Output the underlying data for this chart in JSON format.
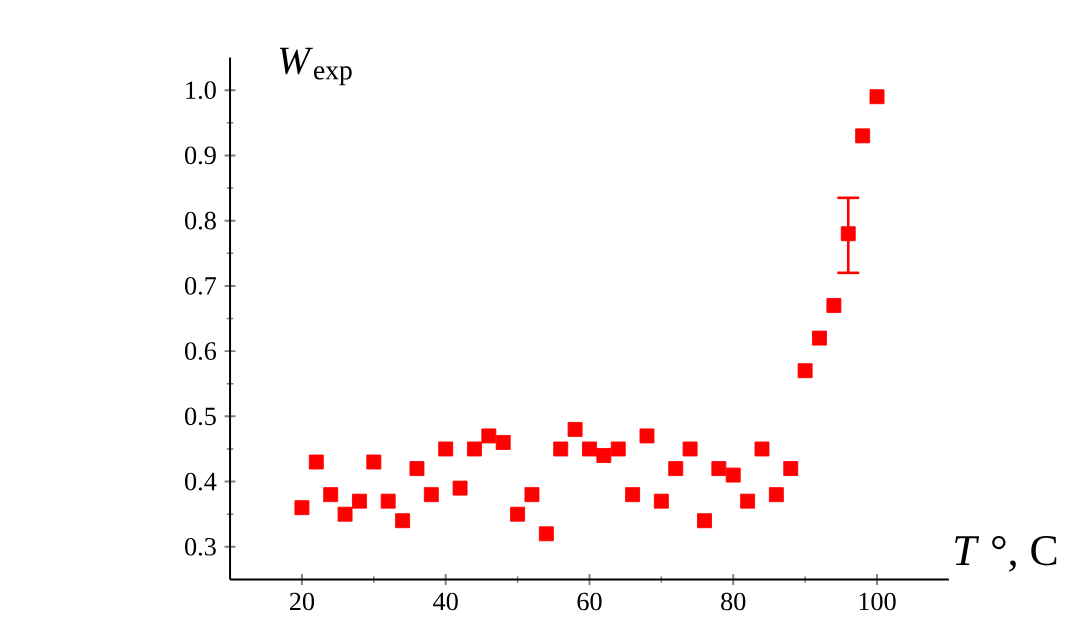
{
  "chart_data": {
    "type": "scatter",
    "xlabel": "*T* °, C",
    "ylabel": "*W*$_{exp}$",
    "x": [
      20,
      22,
      24,
      26,
      28,
      30,
      32,
      34,
      36,
      38,
      40,
      42,
      44,
      46,
      48,
      50,
      52,
      54,
      56,
      58,
      60,
      62,
      64,
      66,
      68,
      70,
      72,
      74,
      76,
      78,
      80,
      82,
      84,
      86,
      88,
      90,
      92,
      94,
      96,
      98,
      100
    ],
    "series": [
      {
        "color": "#ff0000",
        "values": [
          0.36,
          0.43,
          0.38,
          0.35,
          0.37,
          0.43,
          0.37,
          0.34,
          0.42,
          0.38,
          0.45,
          0.39,
          0.45,
          0.47,
          0.46,
          0.35,
          0.38,
          0.32,
          0.45,
          0.48,
          0.45,
          0.44,
          0.45,
          0.38,
          0.47,
          0.37,
          0.42,
          0.45,
          0.34,
          0.42,
          0.41,
          0.37,
          0.45,
          0.38,
          0.42,
          0.57,
          0.62,
          0.67,
          0.78,
          0.93,
          0.99
        ],
        "errors": [
          null,
          null,
          null,
          null,
          null,
          null,
          null,
          null,
          null,
          null,
          null,
          null,
          null,
          null,
          null,
          null,
          null,
          null,
          null,
          null,
          null,
          null,
          null,
          null,
          null,
          null,
          null,
          null,
          null,
          null,
          null,
          null,
          null,
          null,
          null,
          null,
          null,
          null,
          [
            0.72,
            0.835
          ],
          null,
          null
        ]
      }
    ],
    "xlim": [
      10,
      110
    ],
    "ylim": [
      0.25,
      1.05
    ],
    "xticks": [
      20,
      40,
      60,
      80,
      100
    ],
    "yticks": [
      0.3,
      0.4,
      0.5,
      0.6,
      0.7,
      0.8,
      0.9,
      {
        "value": 1.0,
        "label": "1.0"
      }
    ],
    "marker": "square",
    "grid": false
  }
}
